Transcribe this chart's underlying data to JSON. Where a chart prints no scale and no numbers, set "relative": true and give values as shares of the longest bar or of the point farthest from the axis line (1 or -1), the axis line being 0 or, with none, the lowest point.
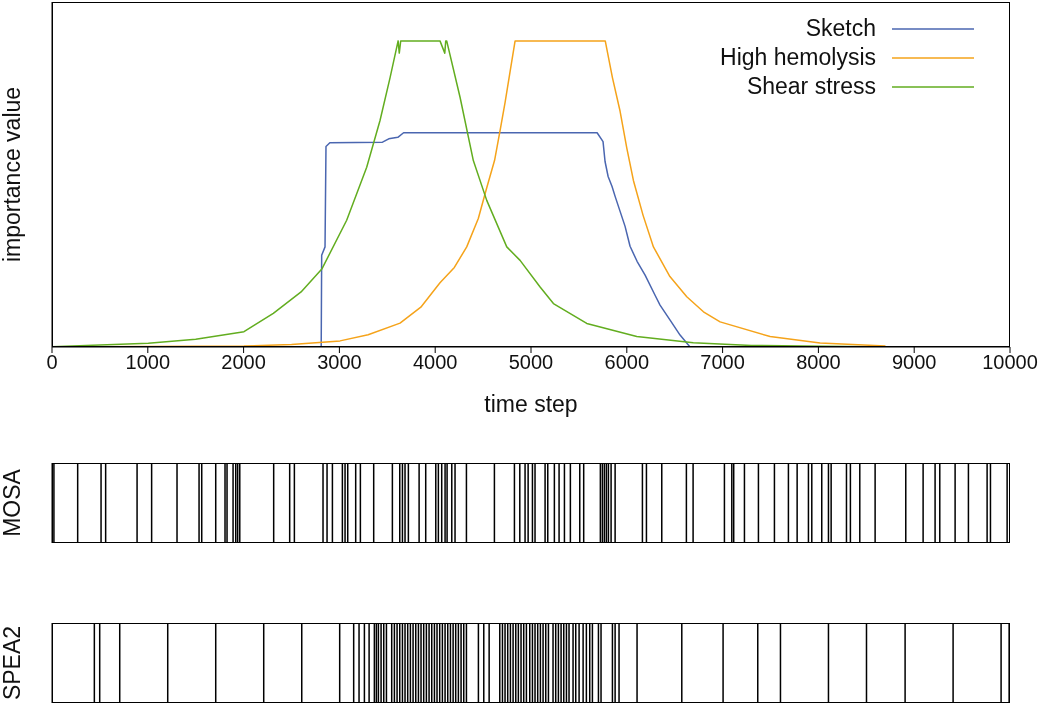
{
  "chart_data": [
    {
      "type": "line",
      "xlabel": "time step",
      "ylabel": "importance value",
      "relative": true,
      "legend": "top right",
      "xlim": [
        0,
        10000
      ],
      "xticks": [
        0,
        1000,
        2000,
        3000,
        4000,
        5000,
        6000,
        7000,
        8000,
        9000,
        10000
      ],
      "series": [
        {
          "name": "Sketch",
          "color": "#4a66b0",
          "x": [
            0,
            2810,
            2815,
            2850,
            2860,
            2900,
            3450,
            3515,
            3610,
            3670,
            5690,
            5752,
            5773,
            5805,
            5846,
            5878,
            5930,
            5982,
            6034,
            6107,
            6191,
            6295,
            6347,
            6452,
            6556,
            6660
          ],
          "values": [
            0,
            0,
            0.3,
            0.327,
            0.655,
            0.667,
            0.669,
            0.68,
            0.685,
            0.7,
            0.7,
            0.671,
            0.606,
            0.557,
            0.524,
            0.492,
            0.443,
            0.394,
            0.329,
            0.28,
            0.235,
            0.169,
            0.137,
            0.088,
            0.039,
            0
          ]
        },
        {
          "name": "High hemolysis",
          "color": "#f5a31a",
          "x": [
            0,
            2004,
            2500,
            3007,
            3300,
            3633,
            3850,
            4050,
            4200,
            4329,
            4450,
            4538,
            4620,
            4677,
            4730,
            4782,
            4834,
            5775,
            5850,
            5930,
            6000,
            6069,
            6170,
            6278,
            6450,
            6626,
            6800,
            6974,
            7496,
            8018,
            8700
          ],
          "values": [
            0,
            0.003,
            0.008,
            0.02,
            0.04,
            0.078,
            0.13,
            0.21,
            0.26,
            0.327,
            0.42,
            0.52,
            0.61,
            0.707,
            0.8,
            0.9,
            1,
            1,
            0.88,
            0.77,
            0.65,
            0.544,
            0.43,
            0.327,
            0.23,
            0.164,
            0.115,
            0.082,
            0.034,
            0.013,
            0.003
          ]
        },
        {
          "name": "Shear stress",
          "color": "#62ad1f",
          "x": [
            0,
            1005,
            1500,
            2004,
            2310,
            2600,
            2819,
            3076,
            3285,
            3424,
            3529,
            3613,
            3625,
            3640,
            3700,
            4050,
            4100,
            4110,
            4120,
            4260,
            4398,
            4538,
            4747,
            4886,
            5095,
            5234,
            5582,
            6104,
            6694,
            7300,
            8500
          ],
          "values": [
            0.001,
            0.012,
            0.025,
            0.05,
            0.11,
            0.18,
            0.256,
            0.414,
            0.587,
            0.74,
            0.88,
            1,
            0.96,
            1,
            1,
            1,
            0.96,
            1,
            1,
            0.815,
            0.609,
            0.479,
            0.327,
            0.283,
            0.196,
            0.142,
            0.077,
            0.034,
            0.014,
            0.005,
            0.001
          ]
        }
      ]
    },
    {
      "type": "bar",
      "ylabel": "MOSA",
      "relative": true,
      "tick_labels": false,
      "xlim": [
        0,
        10000
      ],
      "x": [
        20,
        268,
        512,
        560,
        888,
        1040,
        1305,
        1535,
        1563,
        1709,
        1806,
        1827,
        1890,
        1918,
        1938,
        1960,
        2314,
        2481,
        2530,
        2829,
        2871,
        2927,
        3031,
        3059,
        3087,
        3170,
        3219,
        3358,
        3553,
        3630,
        3658,
        3685,
        3720,
        3832,
        3901,
        4006,
        4033,
        4068,
        4103,
        4124,
        4173,
        4207,
        4326,
        4618,
        4827,
        4883,
        4938,
        4970,
        5015,
        5042,
        5147,
        5175,
        5244,
        5293,
        5349,
        5411,
        5509,
        5550,
        5724,
        5745,
        5766,
        5787,
        5808,
        5836,
        5878,
        6163,
        6205,
        6365,
        6622,
        6692,
        7019,
        7096,
        7116,
        7228,
        7374,
        7541,
        7687,
        7778,
        7896,
        7931,
        8035,
        8105,
        8133,
        8293,
        8334,
        8432,
        8592,
        8912,
        9093,
        9218,
        9267,
        9427,
        9566,
        9761,
        9796,
        9970
      ],
      "series": [
        {
          "color": "#000000",
          "values": [
            1,
            1,
            1,
            1,
            1,
            1,
            1,
            1,
            1,
            1,
            1,
            1,
            1,
            1,
            1,
            1,
            1,
            1,
            1,
            1,
            1,
            1,
            1,
            1,
            1,
            1,
            1,
            1,
            1,
            1,
            1,
            1,
            1,
            1,
            1,
            1,
            1,
            1,
            1,
            1,
            1,
            1,
            1,
            1,
            1,
            1,
            1,
            1,
            1,
            1,
            1,
            1,
            1,
            1,
            1,
            1,
            1,
            1,
            1,
            1,
            1,
            1,
            1,
            1,
            1,
            1,
            1,
            1,
            1,
            1,
            1,
            1,
            1,
            1,
            1,
            1,
            1,
            1,
            1,
            1,
            1,
            1,
            1,
            1,
            1,
            1,
            1,
            1,
            1,
            1,
            1,
            1,
            1,
            1,
            1,
            1
          ]
        }
      ]
    },
    {
      "type": "bar",
      "ylabel": "SPEA2",
      "relative": true,
      "tick_labels": false,
      "xlim": [
        0,
        10000
      ],
      "x": [
        442,
        498,
        707,
        1208,
        1709,
        2210,
        2607,
        3003,
        3149,
        3205,
        3261,
        3310,
        3365,
        3386,
        3407,
        3435,
        3463,
        3491,
        3546,
        3574,
        3602,
        3630,
        3658,
        3685,
        3713,
        3741,
        3769,
        3797,
        3825,
        3852,
        3880,
        3908,
        3936,
        3964,
        3992,
        4019,
        4047,
        4075,
        4103,
        4131,
        4159,
        4187,
        4214,
        4242,
        4270,
        4298,
        4326,
        4451,
        4507,
        4563,
        4674,
        4702,
        4729,
        4757,
        4785,
        4813,
        4841,
        4868,
        4896,
        4924,
        4952,
        4987,
        5015,
        5042,
        5070,
        5098,
        5126,
        5154,
        5182,
        5230,
        5258,
        5286,
        5314,
        5342,
        5370,
        5397,
        5439,
        5467,
        5502,
        5544,
        5578,
        5613,
        5641,
        5704,
        5731,
        5850,
        5878,
        5919,
        6107,
        6574,
        7005,
        7367,
        7604,
        8105,
        8502,
        8905,
        9406,
        9907,
        9991
      ],
      "series": [
        {
          "color": "#000000",
          "values": [
            1,
            1,
            1,
            1,
            1,
            1,
            1,
            1,
            1,
            1,
            1,
            1,
            1,
            1,
            1,
            1,
            1,
            1,
            1,
            1,
            1,
            1,
            1,
            1,
            1,
            1,
            1,
            1,
            1,
            1,
            1,
            1,
            1,
            1,
            1,
            1,
            1,
            1,
            1,
            1,
            1,
            1,
            1,
            1,
            1,
            1,
            1,
            1,
            1,
            1,
            1,
            1,
            1,
            1,
            1,
            1,
            1,
            1,
            1,
            1,
            1,
            1,
            1,
            1,
            1,
            1,
            1,
            1,
            1,
            1,
            1,
            1,
            1,
            1,
            1,
            1,
            1,
            1,
            1,
            1,
            1,
            1,
            1,
            1,
            1,
            1,
            1,
            1,
            1,
            1,
            1,
            1,
            1,
            1,
            1,
            1,
            1,
            1,
            1
          ]
        }
      ]
    }
  ]
}
